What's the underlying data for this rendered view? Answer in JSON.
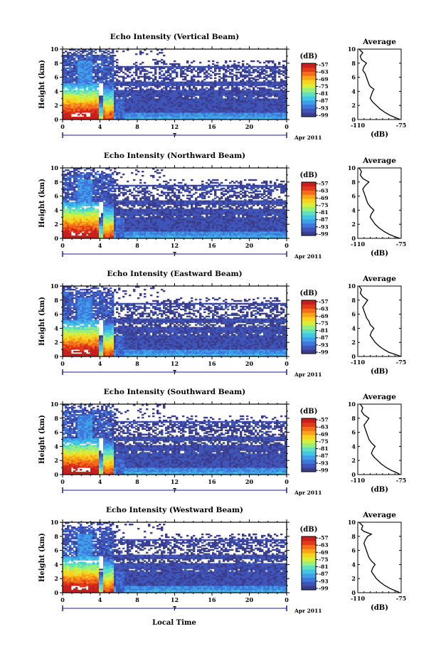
{
  "figure": {
    "bottom_xlabel": "Local Time",
    "colors": {
      "colorscale": [
        "#3b3d8f",
        "#3f55b8",
        "#3f78dd",
        "#3fa0e8",
        "#43c6e6",
        "#5fe0c0",
        "#9aef7c",
        "#d8ee3d",
        "#f7d21e",
        "#f9a418",
        "#f46d1a",
        "#e13a1a",
        "#c81e1e"
      ],
      "frame": "#000000",
      "date_axis": "#1f1f8f"
    }
  },
  "chart_data": [
    {
      "type": "heatmap",
      "beam": "vertical",
      "title": "Echo Intensity (Vertical Beam)",
      "xlabel": "",
      "ylabel": "Height (km)",
      "x_ticks": [
        "0",
        "4",
        "8",
        "12",
        "16",
        "20",
        "0"
      ],
      "y_ticks": [
        "0",
        "2",
        "4",
        "6",
        "8",
        "10"
      ],
      "xlim": [
        0,
        24
      ],
      "ylim": [
        0,
        10
      ],
      "date_label": "7",
      "month_label": "Apr 2011",
      "colorbar": {
        "label": "(dB)",
        "ticks": [
          "-57",
          "-63",
          "-69",
          "-75",
          "-81",
          "-87",
          "-93",
          "-99"
        ]
      },
      "average_profile": {
        "title": "Average",
        "xlabel": "(dB)",
        "x_ticks": [
          "-110",
          "-75"
        ],
        "y_ticks": [
          "0",
          "2",
          "4",
          "6",
          "8",
          "10"
        ],
        "xlim": [
          -110,
          -75
        ],
        "ylim": [
          0,
          10
        ],
        "height": [
          0.0,
          0.3,
          0.6,
          1.0,
          1.5,
          2.0,
          2.5,
          3.0,
          3.5,
          4.0,
          4.3,
          4.7,
          5.0,
          5.5,
          6.0,
          6.5,
          7.0,
          7.5,
          8.0,
          8.5,
          9.0,
          9.5,
          10.0
        ],
        "value": [
          -76,
          -80,
          -84,
          -88,
          -92,
          -95,
          -98,
          -100,
          -99,
          -98,
          -97,
          -100,
          -101,
          -102,
          -103,
          -104,
          -106,
          -105,
          -103,
          -107,
          -108,
          -106,
          -109
        ]
      }
    },
    {
      "type": "heatmap",
      "beam": "northward",
      "title": "Echo Intensity (Northward Beam)",
      "xlabel": "",
      "ylabel": "Height (km)",
      "x_ticks": [
        "0",
        "4",
        "8",
        "12",
        "16",
        "20",
        "0"
      ],
      "y_ticks": [
        "0",
        "2",
        "4",
        "6",
        "8",
        "10"
      ],
      "xlim": [
        0,
        24
      ],
      "ylim": [
        0,
        10
      ],
      "date_label": "7",
      "month_label": "Apr 2011",
      "colorbar": {
        "label": "(dB)",
        "ticks": [
          "-57",
          "-63",
          "-69",
          "-75",
          "-81",
          "-87",
          "-93",
          "-99"
        ]
      },
      "average_profile": {
        "title": "Average",
        "xlabel": "(dB)",
        "x_ticks": [
          "-110",
          "-75"
        ],
        "y_ticks": [
          "0",
          "2",
          "4",
          "6",
          "8",
          "10"
        ],
        "xlim": [
          -110,
          -75
        ],
        "ylim": [
          0,
          10
        ],
        "height": [
          0.0,
          0.3,
          0.6,
          1.0,
          1.5,
          2.0,
          2.5,
          3.0,
          3.5,
          4.0,
          4.5,
          5.0,
          5.5,
          6.0,
          6.5,
          7.0,
          7.5,
          8.0,
          8.5,
          9.0,
          9.5,
          10.0
        ],
        "value": [
          -76,
          -81,
          -85,
          -89,
          -93,
          -96,
          -98,
          -100,
          -99,
          -97,
          -100,
          -102,
          -103,
          -104,
          -105,
          -106,
          -104,
          -101,
          -106,
          -108,
          -107,
          -109
        ]
      }
    },
    {
      "type": "heatmap",
      "beam": "eastward",
      "title": "Echo Intensity (Eastward Beam)",
      "xlabel": "",
      "ylabel": "Height (km)",
      "x_ticks": [
        "0",
        "4",
        "8",
        "12",
        "16",
        "20",
        "0"
      ],
      "y_ticks": [
        "0",
        "2",
        "4",
        "6",
        "8",
        "10"
      ],
      "xlim": [
        0,
        24
      ],
      "ylim": [
        0,
        10
      ],
      "date_label": "7",
      "month_label": "Apr 2011",
      "colorbar": {
        "label": "(dB)",
        "ticks": [
          "-57",
          "-63",
          "-69",
          "-75",
          "-81",
          "-87",
          "-93",
          "-99"
        ]
      },
      "average_profile": {
        "title": "Average",
        "xlabel": "(dB)",
        "x_ticks": [
          "-110",
          "-75"
        ],
        "y_ticks": [
          "0",
          "2",
          "4",
          "6",
          "8",
          "10"
        ],
        "xlim": [
          -110,
          -75
        ],
        "ylim": [
          0,
          10
        ],
        "height": [
          0.0,
          0.3,
          0.6,
          1.0,
          1.5,
          2.0,
          2.5,
          3.0,
          3.5,
          4.0,
          4.5,
          5.0,
          5.5,
          6.0,
          6.5,
          7.0,
          7.5,
          8.0,
          8.5,
          9.0,
          9.5,
          10.0
        ],
        "value": [
          -75,
          -80,
          -85,
          -89,
          -93,
          -96,
          -98,
          -100,
          -99,
          -97,
          -100,
          -101,
          -103,
          -104,
          -105,
          -106,
          -104,
          -102,
          -106,
          -108,
          -107,
          -109
        ]
      }
    },
    {
      "type": "heatmap",
      "beam": "southward",
      "title": "Echo Intensity (Southward Beam)",
      "xlabel": "",
      "ylabel": "Height (km)",
      "x_ticks": [
        "0",
        "4",
        "8",
        "12",
        "16",
        "20",
        "0"
      ],
      "y_ticks": [
        "0",
        "2",
        "4",
        "6",
        "8",
        "10"
      ],
      "xlim": [
        0,
        24
      ],
      "ylim": [
        0,
        10
      ],
      "date_label": "7",
      "month_label": "Apr 2011",
      "colorbar": {
        "label": "(dB)",
        "ticks": [
          "-57",
          "-63",
          "-69",
          "-75",
          "-81",
          "-87",
          "-93",
          "-99"
        ]
      },
      "average_profile": {
        "title": "Average",
        "xlabel": "(dB)",
        "x_ticks": [
          "-110",
          "-75"
        ],
        "y_ticks": [
          "0",
          "2",
          "4",
          "6",
          "8",
          "10"
        ],
        "xlim": [
          -110,
          -75
        ],
        "ylim": [
          0,
          10
        ],
        "height": [
          0.0,
          0.3,
          0.6,
          1.0,
          1.5,
          2.0,
          2.5,
          3.0,
          3.5,
          4.0,
          4.5,
          5.0,
          5.5,
          6.0,
          6.5,
          7.0,
          7.5,
          8.0,
          8.5,
          9.0,
          9.5,
          10.0
        ],
        "value": [
          -76,
          -79,
          -83,
          -87,
          -91,
          -94,
          -97,
          -99,
          -98,
          -96,
          -99,
          -101,
          -102,
          -103,
          -104,
          -105,
          -103,
          -101,
          -105,
          -107,
          -106,
          -108
        ]
      }
    },
    {
      "type": "heatmap",
      "beam": "westward",
      "title": "Echo Intensity (Westward Beam)",
      "xlabel": "",
      "ylabel": "Height (km)",
      "x_ticks": [
        "0",
        "4",
        "8",
        "12",
        "16",
        "20",
        "0"
      ],
      "y_ticks": [
        "0",
        "2",
        "4",
        "6",
        "8",
        "10"
      ],
      "xlim": [
        0,
        24
      ],
      "ylim": [
        0,
        10
      ],
      "date_label": "7",
      "month_label": "Apr 2011",
      "colorbar": {
        "label": "(dB)",
        "ticks": [
          "-57",
          "-63",
          "-69",
          "-75",
          "-81",
          "-87",
          "-93",
          "-99"
        ]
      },
      "average_profile": {
        "title": "Average",
        "xlabel": "(dB)",
        "x_ticks": [
          "-110",
          "-75"
        ],
        "y_ticks": [
          "0",
          "2",
          "4",
          "6",
          "8",
          "10"
        ],
        "xlim": [
          -110,
          -75
        ],
        "ylim": [
          0,
          10
        ],
        "height": [
          0.0,
          0.3,
          0.6,
          1.0,
          1.5,
          2.0,
          2.5,
          3.0,
          3.5,
          4.0,
          4.5,
          5.0,
          5.5,
          6.0,
          6.5,
          7.0,
          7.5,
          8.0,
          8.3,
          8.7,
          9.0,
          9.5,
          10.0
        ],
        "value": [
          -76,
          -80,
          -84,
          -88,
          -92,
          -95,
          -97,
          -99,
          -98,
          -96,
          -99,
          -101,
          -102,
          -103,
          -104,
          -105,
          -104,
          -102,
          -99,
          -105,
          -107,
          -106,
          -109
        ]
      }
    }
  ]
}
